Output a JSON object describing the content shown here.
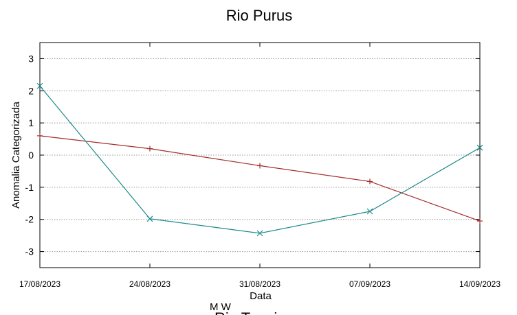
{
  "chart_data": {
    "type": "line",
    "title": "Rio Purus",
    "xlabel": "Data",
    "ylabel": "Anomalia Categorizada",
    "categories": [
      "17/08/2023",
      "24/08/2023",
      "31/08/2023",
      "07/09/2023",
      "14/09/2023"
    ],
    "ylim": [
      -3.5,
      3.5
    ],
    "yticks": [
      3,
      2,
      1,
      0,
      -1,
      -2,
      -3
    ],
    "grid": true,
    "series": [
      {
        "color": "#a52a2a",
        "marker": "plus",
        "values": [
          0.6,
          0.2,
          -0.33,
          -0.82,
          -2.05
        ]
      },
      {
        "color": "#1e8a8a",
        "marker": "cross",
        "values": [
          2.15,
          -1.98,
          -2.43,
          -1.75,
          0.23
        ]
      }
    ],
    "legend_fragment": "M    W",
    "next_title_fragment": "Rio Tapajos"
  }
}
